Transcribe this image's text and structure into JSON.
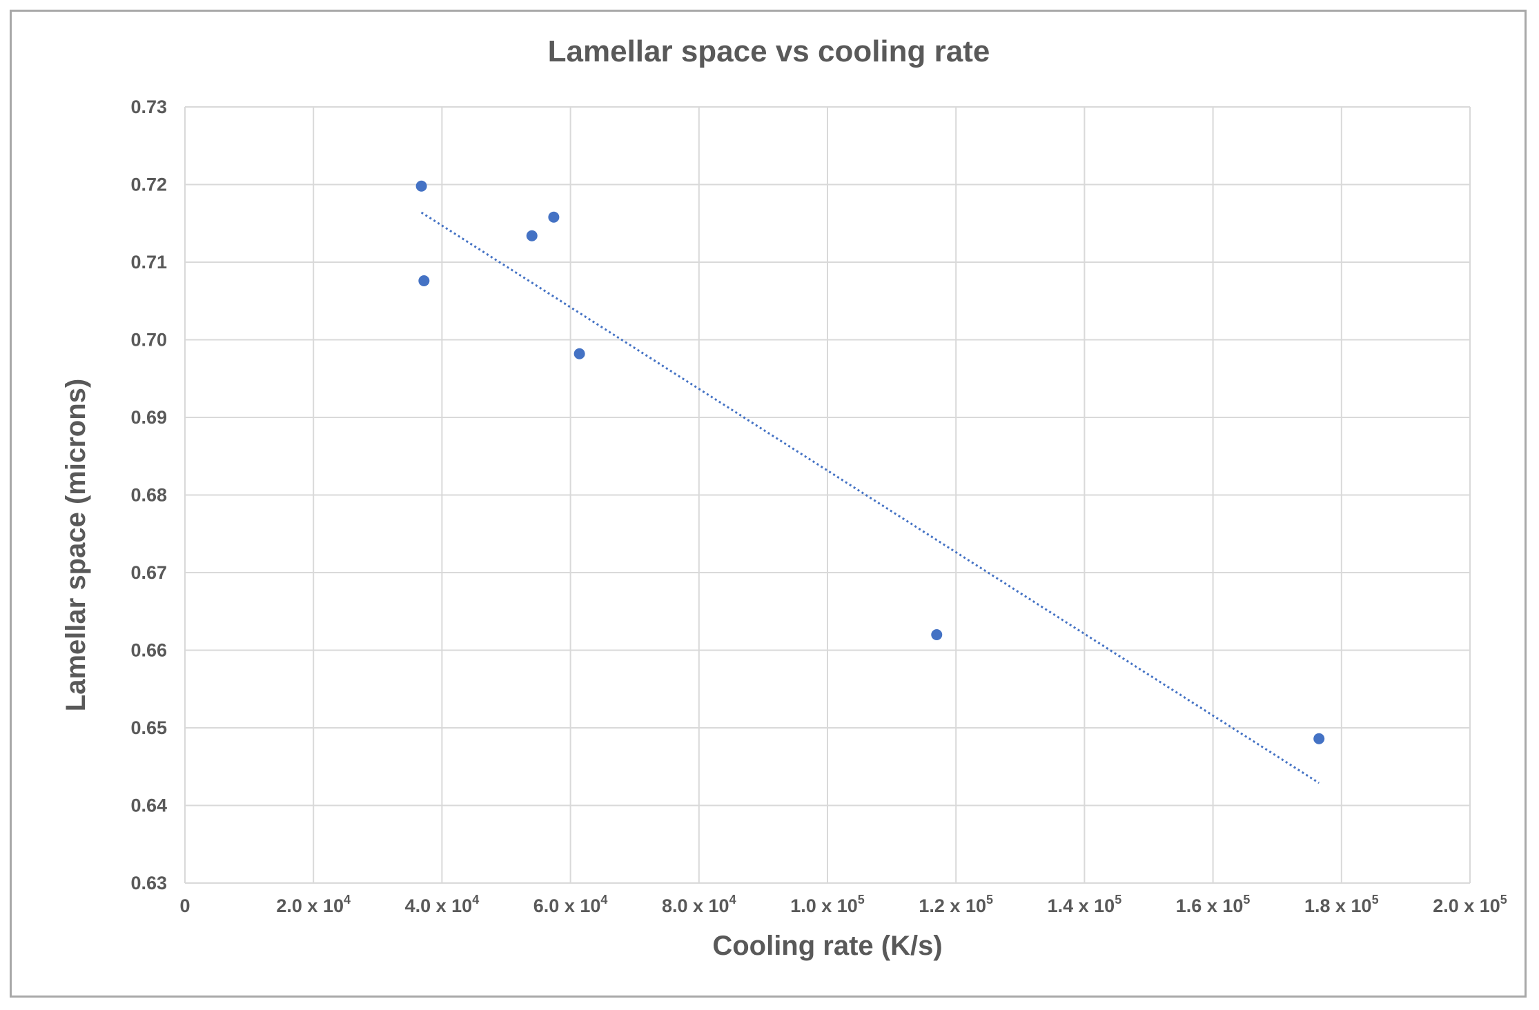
{
  "chart_data": {
    "type": "scatter",
    "title": "Lamellar space vs cooling rate",
    "xlabel": "Cooling rate (K/s)",
    "ylabel": "Lamellar space (microns)",
    "xlim": [
      0,
      200000
    ],
    "ylim": [
      0.63,
      0.73
    ],
    "grid": true,
    "x_ticks": [
      {
        "value": 0,
        "mantissa": "0",
        "exp": ""
      },
      {
        "value": 20000,
        "mantissa": "2.0 x 10",
        "exp": "4"
      },
      {
        "value": 40000,
        "mantissa": "4.0 x 10",
        "exp": "4"
      },
      {
        "value": 60000,
        "mantissa": "6.0 x 10",
        "exp": "4"
      },
      {
        "value": 80000,
        "mantissa": "8.0 x 10",
        "exp": "4"
      },
      {
        "value": 100000,
        "mantissa": "1.0 x 10",
        "exp": "5"
      },
      {
        "value": 120000,
        "mantissa": "1.2 x 10",
        "exp": "5"
      },
      {
        "value": 140000,
        "mantissa": "1.4 x 10",
        "exp": "5"
      },
      {
        "value": 160000,
        "mantissa": "1.6 x 10",
        "exp": "5"
      },
      {
        "value": 180000,
        "mantissa": "1.8 x 10",
        "exp": "5"
      },
      {
        "value": 200000,
        "mantissa": "2.0 x 10",
        "exp": "5"
      }
    ],
    "y_ticks": [
      {
        "value": 0.63,
        "label": "0.63"
      },
      {
        "value": 0.64,
        "label": "0.64"
      },
      {
        "value": 0.65,
        "label": "0.65"
      },
      {
        "value": 0.66,
        "label": "0.66"
      },
      {
        "value": 0.67,
        "label": "0.67"
      },
      {
        "value": 0.68,
        "label": "0.68"
      },
      {
        "value": 0.69,
        "label": "0.69"
      },
      {
        "value": 0.7,
        "label": "0.70"
      },
      {
        "value": 0.71,
        "label": "0.71"
      },
      {
        "value": 0.72,
        "label": "0.72"
      },
      {
        "value": 0.73,
        "label": "0.73"
      }
    ],
    "series": [
      {
        "name": "Lamellar space",
        "color": "#4472c4",
        "points": [
          {
            "x": 36800,
            "y": 0.7198
          },
          {
            "x": 37200,
            "y": 0.7076
          },
          {
            "x": 54000,
            "y": 0.7134
          },
          {
            "x": 57400,
            "y": 0.7158
          },
          {
            "x": 61400,
            "y": 0.6982
          },
          {
            "x": 117000,
            "y": 0.662
          },
          {
            "x": 176500,
            "y": 0.6486
          }
        ]
      }
    ],
    "trendline": {
      "type": "linear",
      "color": "#4472c4",
      "start": {
        "x": 36800,
        "y": 0.7164
      },
      "end": {
        "x": 176500,
        "y": 0.6429
      }
    }
  }
}
